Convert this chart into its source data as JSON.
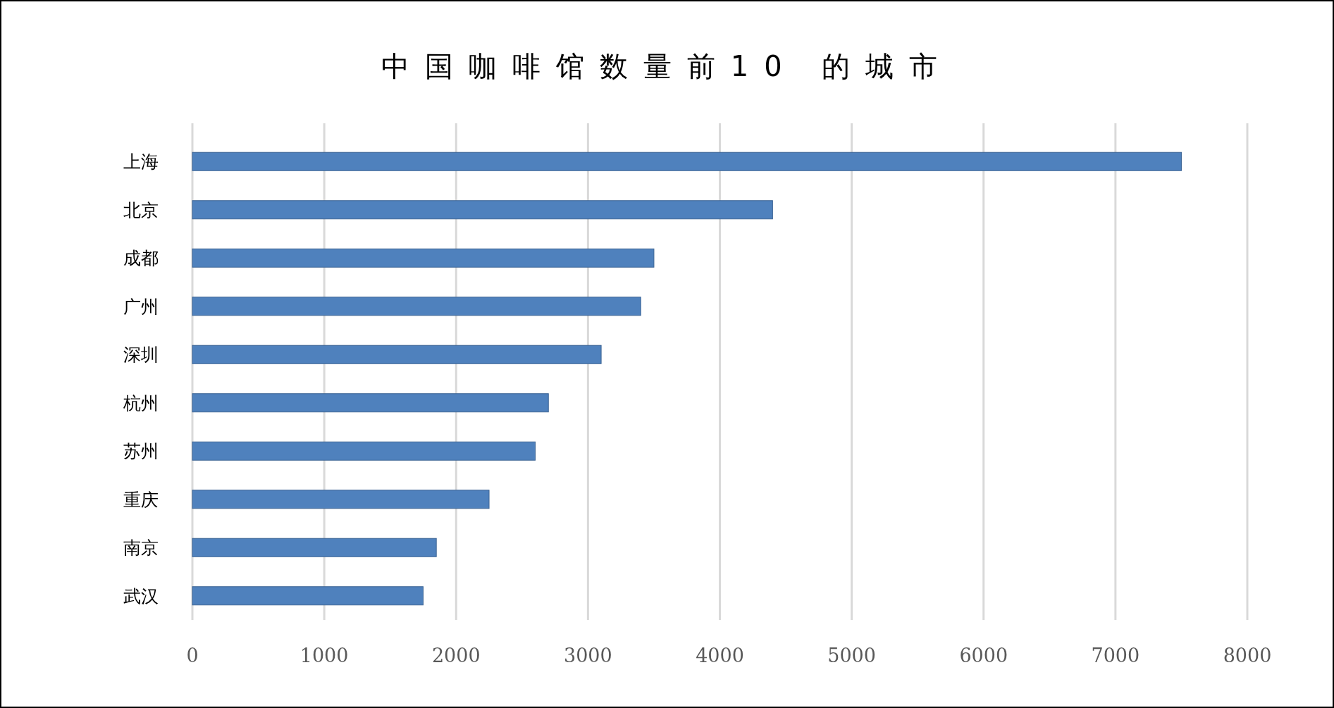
{
  "chart_data": {
    "type": "bar",
    "orientation": "horizontal",
    "title": "中国咖啡馆数量前10 的城市",
    "categories": [
      "上海",
      "北京",
      "成都",
      "广州",
      "深圳",
      "杭州",
      "苏州",
      "重庆",
      "南京",
      "武汉"
    ],
    "values": [
      7500,
      4400,
      3500,
      3400,
      3100,
      2700,
      2600,
      2250,
      1850,
      1750
    ],
    "color": "#4f81bd",
    "xlim": [
      0,
      8000
    ],
    "xticks": [
      0,
      1000,
      2000,
      3000,
      4000,
      5000,
      6000,
      7000,
      8000
    ],
    "grid": "x"
  }
}
